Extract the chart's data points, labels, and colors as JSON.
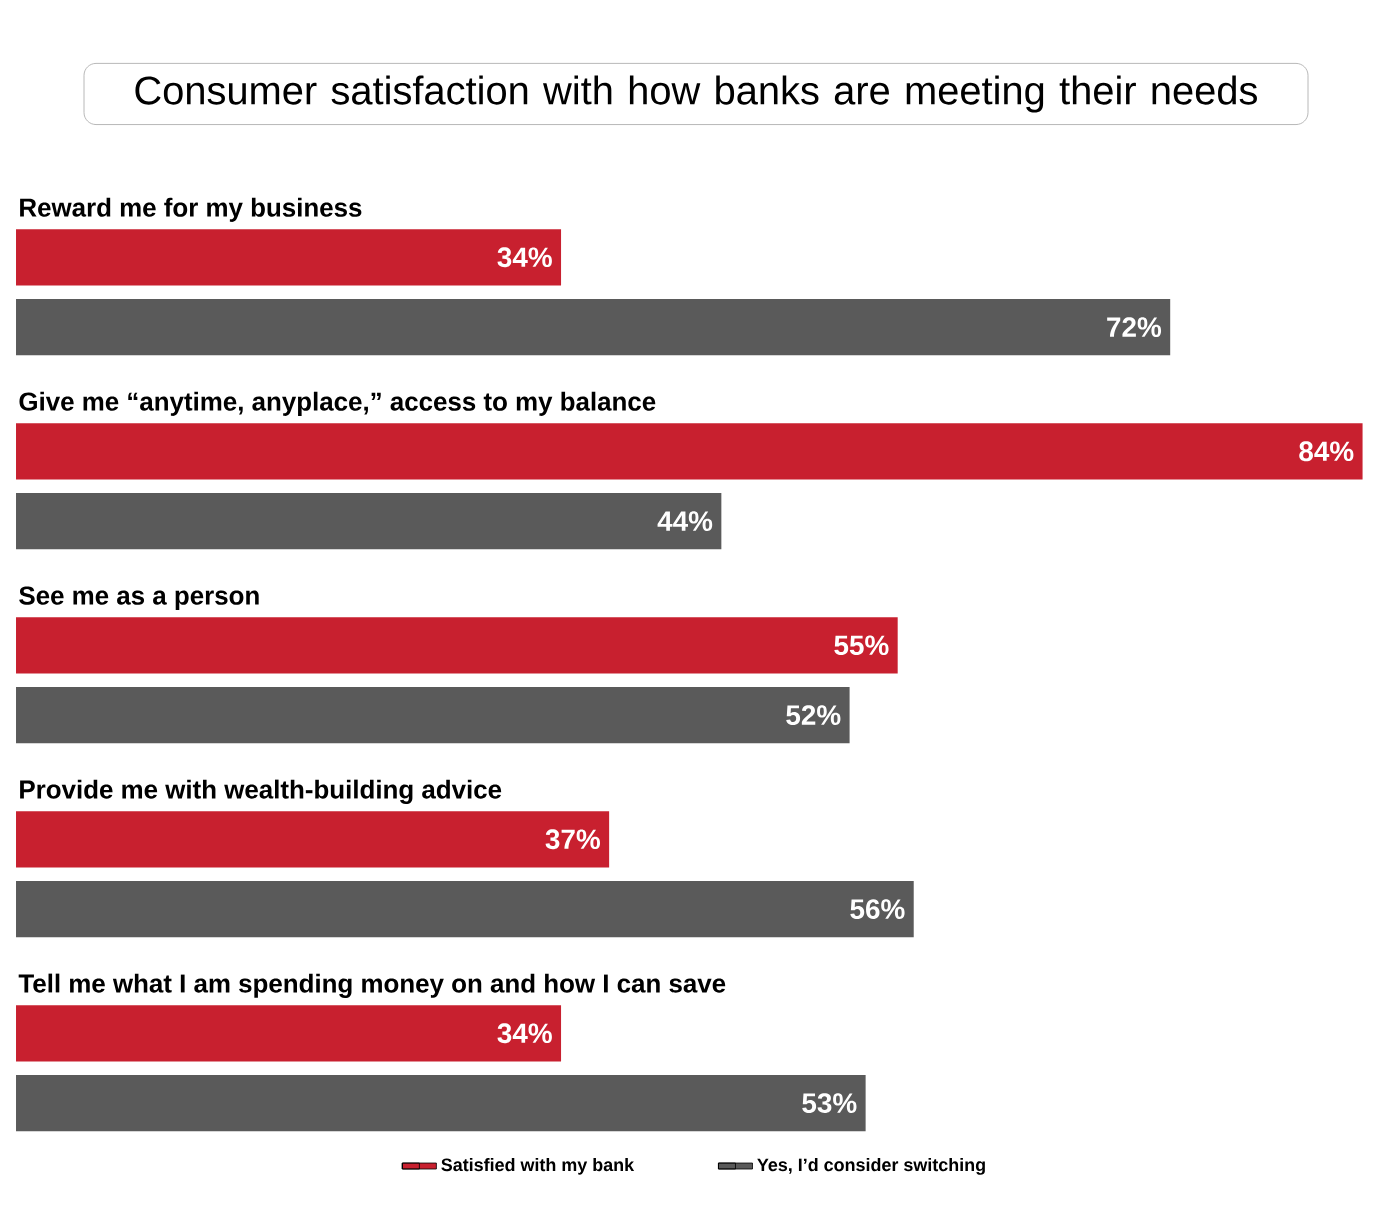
{
  "chart_data": {
    "type": "bar",
    "orientation": "horizontal",
    "title": "Consumer satisfaction with how banks are meeting their needs",
    "categories": [
      "Reward me for my business",
      "Give me “anytime, anyplace,” access to my balance",
      "See me as a person",
      "Provide me with wealth-building advice",
      "Tell me what I am spending money on and how I can save"
    ],
    "series": [
      {
        "name": "Satisfied with my bank",
        "color": "#c8202f",
        "values": [
          34,
          84,
          55,
          37,
          34
        ],
        "value_labels": [
          "34%",
          "84%",
          "55%",
          "37%",
          "34%"
        ]
      },
      {
        "name": "Yes, I’d consider switching",
        "color": "#5a5a5a",
        "values": [
          72,
          44,
          52,
          56,
          53
        ],
        "value_labels": [
          "72%",
          "44%",
          "52%",
          "56%",
          "53%"
        ]
      }
    ],
    "legend": "bottom"
  }
}
